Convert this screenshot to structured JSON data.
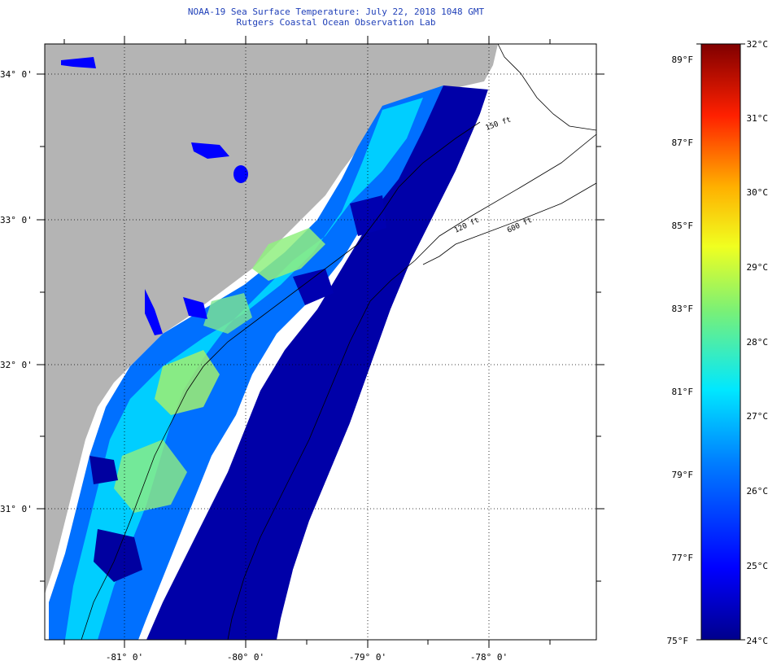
{
  "header": {
    "title": "NOAA-19 Sea Surface Temperature:  July 22, 2018 1048 GMT",
    "subtitle": "Rutgers Coastal Ocean Observation Lab"
  },
  "map": {
    "lat_labels": [
      "34° 0'",
      "33° 0'",
      "32° 0'",
      "31° 0'"
    ],
    "lon_labels": [
      "-81° 0'",
      "-80° 0'",
      "-79° 0'",
      "-78° 0'"
    ],
    "isobath_labels": [
      "150 ft",
      "120 ft",
      "600 ft"
    ],
    "land_color": "#b4b4b4",
    "no_data_color": "#ffffff"
  },
  "colorbar": {
    "celsius_labels": [
      "32°C",
      "31°C",
      "30°C",
      "29°C",
      "28°C",
      "27°C",
      "26°C",
      "25°C",
      "24°C"
    ],
    "fahrenheit_labels": [
      "89°F",
      "87°F",
      "85°F",
      "83°F",
      "81°F",
      "79°F",
      "77°F",
      "75°F"
    ],
    "range_celsius": [
      24,
      32
    ]
  }
}
